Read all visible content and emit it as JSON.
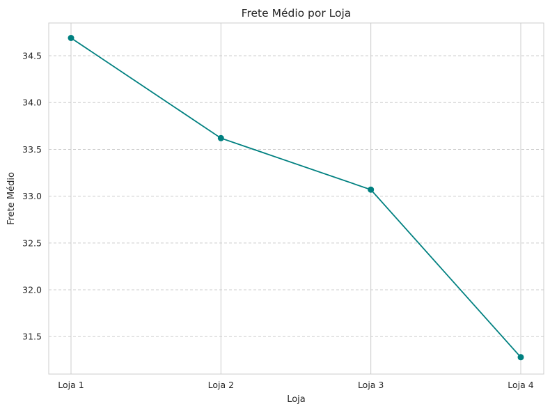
{
  "chart_data": {
    "type": "line",
    "title": "Frete Médio por Loja",
    "xlabel": "Loja",
    "ylabel": "Frete Médio",
    "categories": [
      "Loja 1",
      "Loja 2",
      "Loja 3",
      "Loja 4"
    ],
    "series": [
      {
        "values": [
          34.69,
          33.62,
          33.07,
          31.28
        ],
        "color": "#008080",
        "marker": "circle"
      }
    ],
    "ylim": [
      31.1,
      34.85
    ],
    "yticks": [
      "31.5",
      "32.0",
      "32.5",
      "33.0",
      "33.5",
      "34.0",
      "34.5"
    ],
    "grid": {
      "x": "solid",
      "y": "dashed"
    },
    "colors": {
      "line": "#008080",
      "grid": "#cccccc",
      "frame": "#cccccc"
    }
  }
}
